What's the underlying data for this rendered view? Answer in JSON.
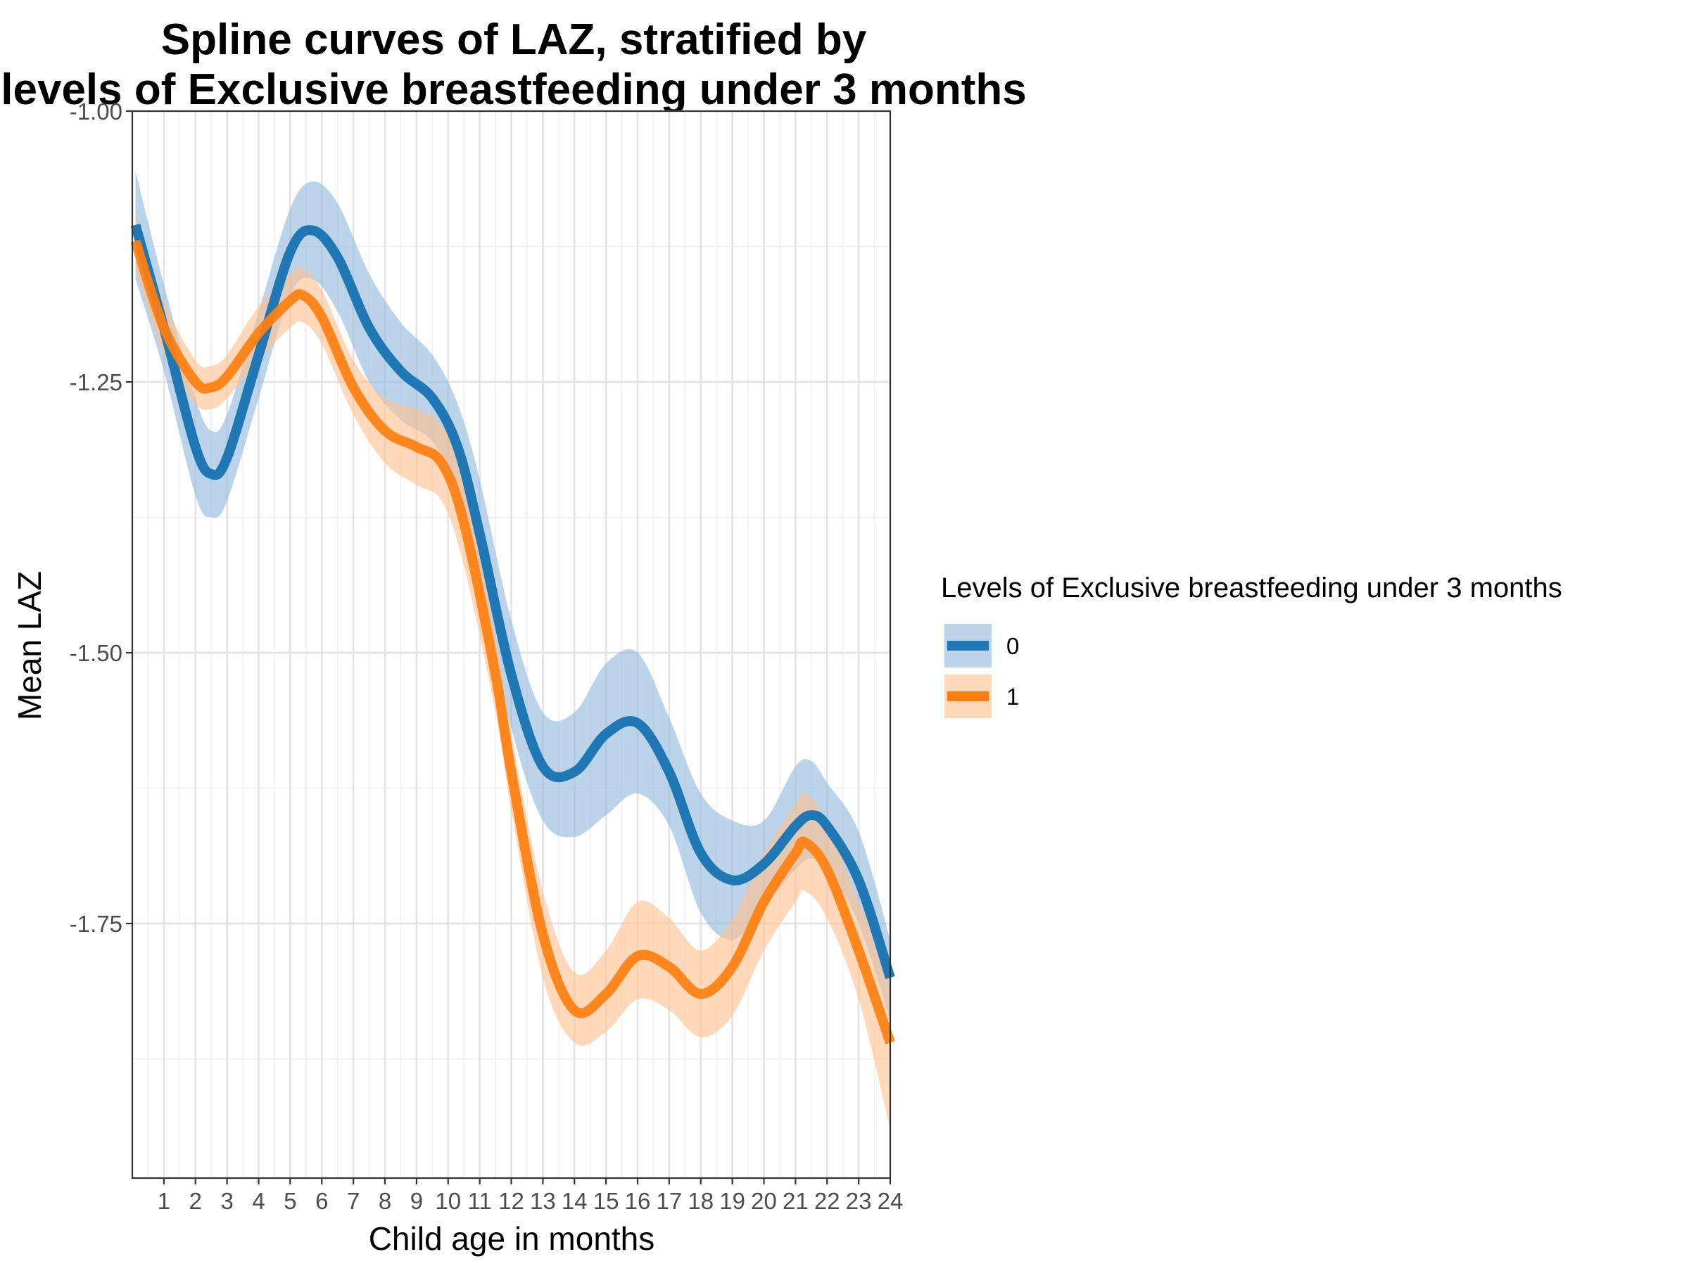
{
  "chart_data": {
    "type": "line",
    "title_lines": [
      "Spline curves of LAZ, stratified by",
      "levels of Exclusive breastfeeding under 3 months"
    ],
    "xlabel": "Child age in months",
    "ylabel": "Mean LAZ",
    "xlim": [
      0,
      24
    ],
    "ylim": [
      -1.985,
      -1.0
    ],
    "x_ticks": [
      1,
      2,
      3,
      4,
      5,
      6,
      7,
      8,
      9,
      10,
      11,
      12,
      13,
      14,
      15,
      16,
      17,
      18,
      19,
      20,
      21,
      22,
      23,
      24
    ],
    "x_tick_labels": [
      "1",
      "2",
      "3",
      "4",
      "5",
      "6",
      "7",
      "8",
      "9",
      "10",
      "11",
      "12",
      "13",
      "14",
      "15",
      "16",
      "17",
      "18",
      "19",
      "20",
      "21",
      "22",
      "23",
      "24"
    ],
    "y_ticks": [
      -1.0,
      -1.25,
      -1.5,
      -1.75
    ],
    "y_tick_labels": [
      "-1.00",
      "-1.25",
      "-1.50",
      "-1.75"
    ],
    "grid": true,
    "legend": {
      "title": "Levels of Exclusive breastfeeding under 3 months",
      "position": "right",
      "entries": [
        "0",
        "1"
      ]
    },
    "series": [
      {
        "name": "0",
        "color": "#1f77b4",
        "band_color": "#8fb8dc",
        "x": [
          0.1,
          1.0,
          2.0,
          2.5,
          3.0,
          4.0,
          5.0,
          5.7,
          6.5,
          7.5,
          8.5,
          9.5,
          10.3,
          11.0,
          12.0,
          13.0,
          14.0,
          15.0,
          16.0,
          17.0,
          18.0,
          19.0,
          20.0,
          21.0,
          21.5,
          22.0,
          23.0,
          24.0
        ],
        "y": [
          -1.105,
          -1.2,
          -1.31,
          -1.335,
          -1.32,
          -1.225,
          -1.13,
          -1.11,
          -1.135,
          -1.2,
          -1.24,
          -1.265,
          -1.31,
          -1.39,
          -1.52,
          -1.605,
          -1.61,
          -1.575,
          -1.565,
          -1.61,
          -1.685,
          -1.71,
          -1.695,
          -1.66,
          -1.65,
          -1.66,
          -1.71,
          -1.8
        ],
        "lower": [
          -1.155,
          -1.24,
          -1.355,
          -1.375,
          -1.36,
          -1.265,
          -1.17,
          -1.155,
          -1.185,
          -1.25,
          -1.285,
          -1.305,
          -1.35,
          -1.44,
          -1.57,
          -1.655,
          -1.67,
          -1.65,
          -1.63,
          -1.66,
          -1.74,
          -1.765,
          -1.735,
          -1.7,
          -1.69,
          -1.7,
          -1.75,
          -1.84
        ],
        "upper": [
          -1.055,
          -1.16,
          -1.265,
          -1.295,
          -1.28,
          -1.185,
          -1.09,
          -1.065,
          -1.085,
          -1.15,
          -1.195,
          -1.225,
          -1.27,
          -1.34,
          -1.47,
          -1.555,
          -1.555,
          -1.51,
          -1.5,
          -1.56,
          -1.63,
          -1.655,
          -1.655,
          -1.605,
          -1.6,
          -1.62,
          -1.665,
          -1.765
        ]
      },
      {
        "name": "1",
        "color": "#ff7f0e",
        "band_color": "#ffc08c",
        "x": [
          0.1,
          1.0,
          2.0,
          2.5,
          3.0,
          4.0,
          5.0,
          5.4,
          6.0,
          7.0,
          8.0,
          9.0,
          9.8,
          10.5,
          11.5,
          12.0,
          13.0,
          14.0,
          15.0,
          16.0,
          17.0,
          18.0,
          19.0,
          20.0,
          21.0,
          21.3,
          22.0,
          23.0,
          24.0
        ],
        "y": [
          -1.12,
          -1.2,
          -1.25,
          -1.255,
          -1.245,
          -1.205,
          -1.175,
          -1.17,
          -1.19,
          -1.255,
          -1.295,
          -1.31,
          -1.325,
          -1.38,
          -1.52,
          -1.61,
          -1.76,
          -1.83,
          -1.815,
          -1.78,
          -1.79,
          -1.815,
          -1.79,
          -1.73,
          -1.685,
          -1.675,
          -1.7,
          -1.775,
          -1.86
        ],
        "lower": [
          -1.145,
          -1.225,
          -1.27,
          -1.275,
          -1.265,
          -1.23,
          -1.2,
          -1.195,
          -1.215,
          -1.28,
          -1.325,
          -1.345,
          -1.36,
          -1.42,
          -1.555,
          -1.645,
          -1.8,
          -1.86,
          -1.85,
          -1.82,
          -1.83,
          -1.855,
          -1.835,
          -1.775,
          -1.73,
          -1.72,
          -1.745,
          -1.82,
          -1.94
        ],
        "upper": [
          -1.095,
          -1.175,
          -1.23,
          -1.235,
          -1.225,
          -1.18,
          -1.15,
          -1.145,
          -1.165,
          -1.23,
          -1.265,
          -1.275,
          -1.29,
          -1.34,
          -1.485,
          -1.575,
          -1.72,
          -1.795,
          -1.775,
          -1.73,
          -1.745,
          -1.775,
          -1.745,
          -1.685,
          -1.64,
          -1.63,
          -1.655,
          -1.73,
          -1.78
        ]
      }
    ]
  }
}
